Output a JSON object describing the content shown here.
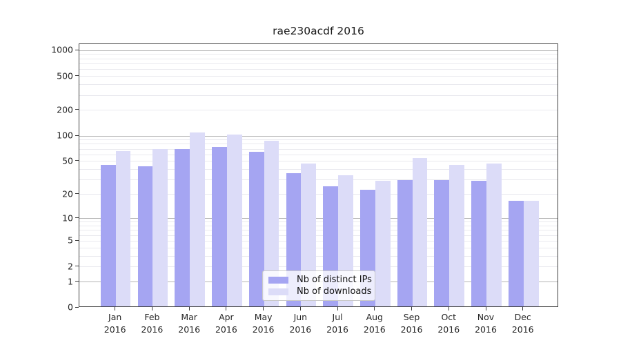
{
  "title": "rae230acdf 2016",
  "chart_data": {
    "type": "bar",
    "scale": "log1p",
    "title": "rae230acdf 2016",
    "xlabel": "",
    "ylabel": "",
    "categories": [
      "Jan",
      "Feb",
      "Mar",
      "Apr",
      "May",
      "Jun",
      "Jul",
      "Aug",
      "Sep",
      "Oct",
      "Nov",
      "Dec"
    ],
    "year": "2016",
    "series": [
      {
        "name": "Nb of distinct IPs",
        "color": "#a5a5f2",
        "values": [
          44,
          42,
          68,
          72,
          63,
          35,
          24,
          22,
          29,
          29,
          28,
          16
        ]
      },
      {
        "name": "Nb of downloads",
        "color": "#dcdcf8",
        "values": [
          64,
          67,
          105,
          100,
          85,
          45,
          33,
          28,
          53,
          44,
          45,
          16
        ]
      }
    ],
    "ytick_values": [
      0,
      1,
      2,
      5,
      10,
      20,
      50,
      100,
      200,
      500,
      1000
    ],
    "ytick_labels": [
      "0",
      "1",
      "2",
      "5",
      "10",
      "20",
      "50",
      "100",
      "200",
      "500",
      "1000"
    ],
    "ylim": [
      0,
      1190
    ],
    "grid": true,
    "gridlines": {
      "major": [
        1,
        10,
        100,
        1000
      ],
      "minor": [
        2,
        3,
        4,
        5,
        6,
        7,
        8,
        9,
        20,
        30,
        40,
        50,
        60,
        70,
        80,
        90,
        200,
        300,
        400,
        500,
        600,
        700,
        800,
        900
      ]
    },
    "legend_position": "bottom-center"
  },
  "legend": {
    "items": [
      {
        "label": "Nb of distinct IPs",
        "color": "#a5a5f2"
      },
      {
        "label": "Nb of downloads",
        "color": "#dcdcf8"
      }
    ]
  },
  "colors": {
    "bar_distinct_ips": "#a5a5f2",
    "bar_downloads": "#dcdcf8",
    "axis": "#3c3c3c",
    "grid_major": "#b3b3b3",
    "grid_minor": "#e9e9ee",
    "background": "#ffffff"
  }
}
